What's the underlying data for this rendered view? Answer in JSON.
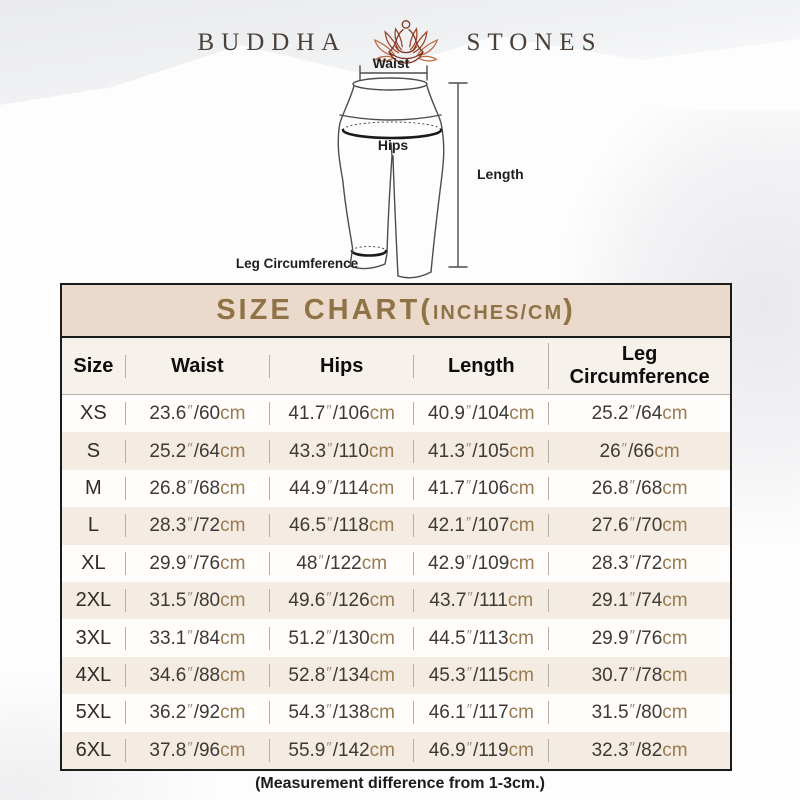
{
  "logo": {
    "left_word": "BUDDHA",
    "right_word": "STONES",
    "icon": "lotus-meditation-icon"
  },
  "diagram": {
    "labels": {
      "waist": "Waist",
      "hips": "Hips",
      "length": "Length",
      "leg_circumference": "Leg Circumference"
    }
  },
  "table": {
    "title": {
      "prefix": "SIZE CHART(",
      "inner": "INCHES/CM",
      "suffix": ")"
    },
    "columns": [
      "Size",
      "Waist",
      "Hips",
      "Length",
      "Leg Circumference"
    ],
    "inch_mark": "″",
    "unit_suffix": "cm",
    "rows": [
      {
        "size": "XS",
        "waist": {
          "in": "23.6",
          "cm": "60"
        },
        "hips": {
          "in": "41.7",
          "cm": "106"
        },
        "length": {
          "in": "40.9",
          "cm": "104"
        },
        "leg": {
          "in": "25.2",
          "cm": "64"
        }
      },
      {
        "size": "S",
        "waist": {
          "in": "25.2",
          "cm": "64"
        },
        "hips": {
          "in": "43.3",
          "cm": "110"
        },
        "length": {
          "in": "41.3",
          "cm": "105"
        },
        "leg": {
          "in": "26",
          "cm": "66"
        }
      },
      {
        "size": "M",
        "waist": {
          "in": "26.8",
          "cm": "68"
        },
        "hips": {
          "in": "44.9",
          "cm": "114"
        },
        "length": {
          "in": "41.7",
          "cm": "106"
        },
        "leg": {
          "in": "26.8",
          "cm": "68"
        }
      },
      {
        "size": "L",
        "waist": {
          "in": "28.3",
          "cm": "72"
        },
        "hips": {
          "in": "46.5",
          "cm": "118"
        },
        "length": {
          "in": "42.1",
          "cm": "107"
        },
        "leg": {
          "in": "27.6",
          "cm": "70"
        }
      },
      {
        "size": "XL",
        "waist": {
          "in": "29.9",
          "cm": "76"
        },
        "hips": {
          "in": "48",
          "cm": "122"
        },
        "length": {
          "in": "42.9",
          "cm": "109"
        },
        "leg": {
          "in": "28.3",
          "cm": "72"
        }
      },
      {
        "size": "2XL",
        "waist": {
          "in": "31.5",
          "cm": "80"
        },
        "hips": {
          "in": "49.6",
          "cm": "126"
        },
        "length": {
          "in": "43.7",
          "cm": "111"
        },
        "leg": {
          "in": "29.1",
          "cm": "74"
        }
      },
      {
        "size": "3XL",
        "waist": {
          "in": "33.1",
          "cm": "84"
        },
        "hips": {
          "in": "51.2",
          "cm": "130"
        },
        "length": {
          "in": "44.5",
          "cm": "113"
        },
        "leg": {
          "in": "29.9",
          "cm": "76"
        }
      },
      {
        "size": "4XL",
        "waist": {
          "in": "34.6",
          "cm": "88"
        },
        "hips": {
          "in": "52.8",
          "cm": "134"
        },
        "length": {
          "in": "45.3",
          "cm": "115"
        },
        "leg": {
          "in": "30.7",
          "cm": "78"
        }
      },
      {
        "size": "5XL",
        "waist": {
          "in": "36.2",
          "cm": "92"
        },
        "hips": {
          "in": "54.3",
          "cm": "138"
        },
        "length": {
          "in": "46.1",
          "cm": "117"
        },
        "leg": {
          "in": "31.5",
          "cm": "80"
        }
      },
      {
        "size": "6XL",
        "waist": {
          "in": "37.8",
          "cm": "96"
        },
        "hips": {
          "in": "55.9",
          "cm": "142"
        },
        "length": {
          "in": "46.9",
          "cm": "119"
        },
        "leg": {
          "in": "32.3",
          "cm": "82"
        }
      }
    ]
  },
  "footer": {
    "note": "(Measurement difference from 1-3cm.)"
  },
  "colors": {
    "title_band_bg": "#ebdacc",
    "title_text": "#8f7347",
    "alt_row_bg": "#f4ebe2",
    "unit_accent": "#9b7b4f",
    "border_dark": "#1b1b1b",
    "lotus_outer": "#c06a42",
    "lotus_inner": "#9c4526"
  }
}
